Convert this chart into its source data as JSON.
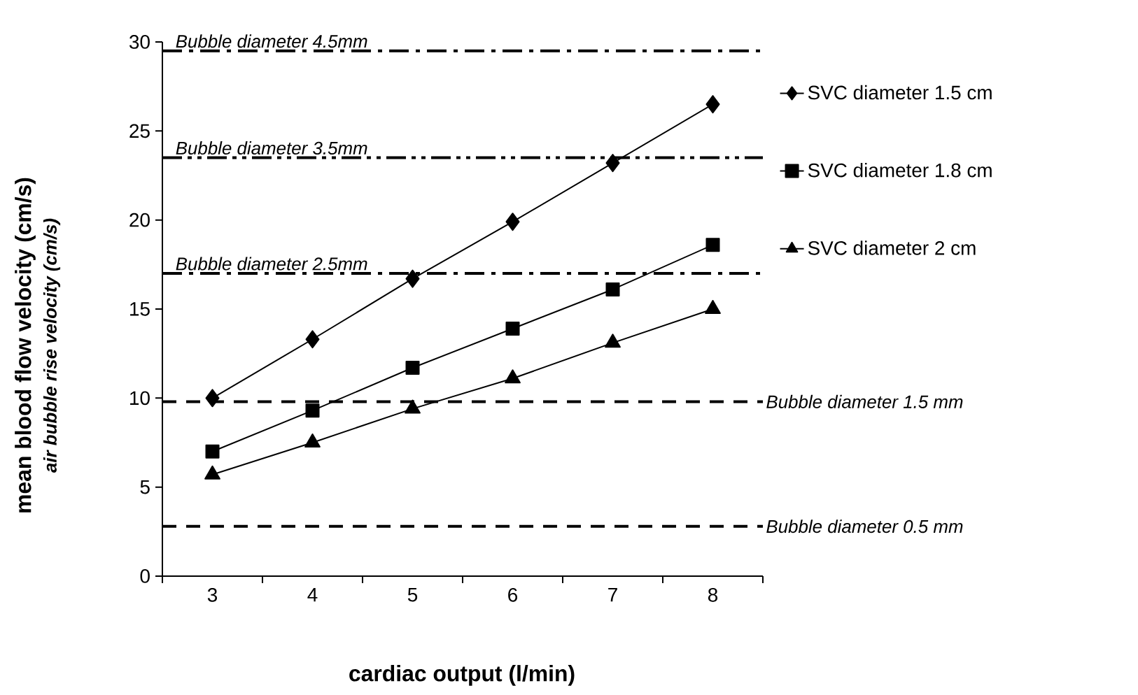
{
  "chart_data": {
    "type": "line",
    "xlabel": "cardiac output (l/min)",
    "ylabel": "mean blood flow velocity (cm/s)",
    "annotations": [
      "air bubble rise velocity (cm/s)"
    ],
    "categories": [
      "3",
      "4",
      "5",
      "6",
      "7",
      "8"
    ],
    "ylim": [
      0,
      30
    ],
    "yticks": [
      0,
      5,
      10,
      15,
      20,
      25,
      30
    ],
    "legend": "right",
    "grid": false,
    "series": [
      {
        "name": "SVC diameter 1.5 cm",
        "color": "#000000",
        "marker": "diamond",
        "values": [
          10.0,
          13.3,
          16.7,
          19.9,
          23.2,
          26.5
        ]
      },
      {
        "name": "SVC diameter 1.8 cm",
        "color": "#000000",
        "marker": "square",
        "values": [
          7.0,
          9.3,
          11.7,
          13.9,
          16.1,
          18.6
        ]
      },
      {
        "name": "SVC diameter 2 cm",
        "color": "#000000",
        "marker": "triangle",
        "values": [
          5.7,
          7.5,
          9.4,
          11.1,
          13.1,
          15.0
        ]
      }
    ],
    "ref_lines": [
      {
        "axis": "y",
        "value": 29.5,
        "label": "Bubble diameter 4.5mm",
        "color": "#000000",
        "line_style": "dashdot"
      },
      {
        "axis": "y",
        "value": 23.5,
        "label": "Bubble diameter 3.5mm",
        "color": "#000000",
        "line_style": "dashdotdot"
      },
      {
        "axis": "y",
        "value": 17.0,
        "label": "Bubble diameter 2.5mm",
        "color": "#000000",
        "line_style": "dashdot"
      },
      {
        "axis": "y",
        "value": 9.8,
        "label": "Bubble diameter 1.5 mm",
        "color": "#000000",
        "line_style": "dashed"
      },
      {
        "axis": "y",
        "value": 2.8,
        "label": "Bubble diameter 0.5 mm",
        "color": "#000000",
        "line_style": "dashed"
      }
    ]
  }
}
